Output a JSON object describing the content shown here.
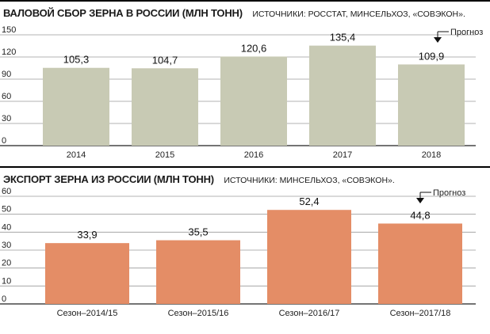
{
  "chart_data": [
    {
      "type": "bar",
      "title": "ВАЛОВОЙ СБОР ЗЕРНА В РОССИИ (МЛН ТОНН)",
      "source": "ИСТОЧНИКИ: РОССТАТ, МИНСЕЛЬХОЗ, «СОВЭКОН».",
      "categories": [
        "2014",
        "2015",
        "2016",
        "2017",
        "2018"
      ],
      "values": [
        105.3,
        104.7,
        120.6,
        135.4,
        109.9
      ],
      "value_labels": [
        "105,3",
        "104,7",
        "120,6",
        "135,4",
        "109,9"
      ],
      "yticks": [
        0,
        30,
        60,
        90,
        120,
        150
      ],
      "ylim": [
        0,
        150
      ],
      "grid": true,
      "bar_color": "#c8cab4",
      "annotation": {
        "text": "Прогноз",
        "category_index": 4
      }
    },
    {
      "type": "bar",
      "title": "ЭКСПОРТ ЗЕРНА ИЗ РОССИИ (МЛН ТОНН)",
      "source": "ИСТОЧНИКИ: МИНСЕЛЬХОЗ, «СОВЭКОН».",
      "categories": [
        "Сезон–2014/15",
        "Сезон–2015/16",
        "Сезон–2016/17",
        "Сезон–2017/18"
      ],
      "values": [
        33.9,
        35.5,
        52.4,
        44.8
      ],
      "value_labels": [
        "33,9",
        "35,5",
        "52,4",
        "44,8"
      ],
      "yticks": [
        0,
        10,
        20,
        30,
        40,
        50,
        60
      ],
      "ylim": [
        0,
        60
      ],
      "grid": true,
      "bar_color": "#e48d66",
      "annotation": {
        "text": "Прогноз",
        "category_index": 3
      }
    }
  ]
}
